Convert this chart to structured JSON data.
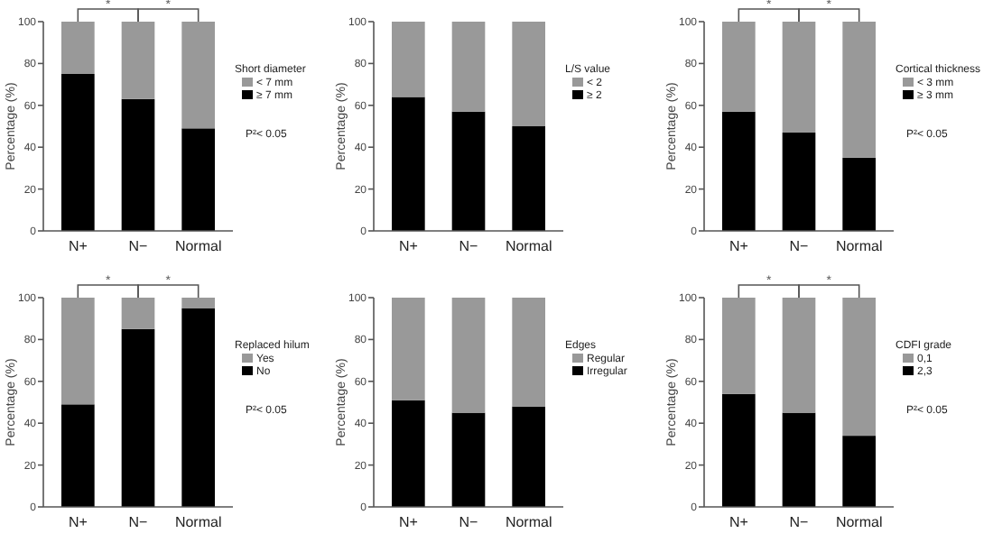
{
  "chart_data": [
    {
      "type": "bar",
      "stacked": true,
      "categories": [
        "N+",
        "N−",
        "Normal"
      ],
      "ylabel": "Percentage (%)",
      "ylim": [
        0,
        100
      ],
      "yticks": [
        0,
        20,
        40,
        60,
        80,
        100
      ],
      "legend": "right",
      "legend_title": "Short diameter",
      "series": [
        {
          "name": "≥ 7 mm",
          "color": "#000000",
          "values": [
            75,
            63,
            49
          ]
        },
        {
          "name": "< 7 mm",
          "color": "#999999",
          "values": [
            25,
            37,
            51
          ]
        }
      ],
      "annotations": [
        "*",
        "*",
        "P²< 0.05"
      ]
    },
    {
      "type": "bar",
      "stacked": true,
      "categories": [
        "N+",
        "N−",
        "Normal"
      ],
      "ylabel": "Percentage (%)",
      "ylim": [
        0,
        100
      ],
      "yticks": [
        0,
        20,
        40,
        60,
        80,
        100
      ],
      "legend": "right",
      "legend_title": "L/S value",
      "series": [
        {
          "name": "≥ 2",
          "color": "#000000",
          "values": [
            64,
            57,
            50
          ]
        },
        {
          "name": "< 2",
          "color": "#999999",
          "values": [
            36,
            43,
            50
          ]
        }
      ]
    },
    {
      "type": "bar",
      "stacked": true,
      "categories": [
        "N+",
        "N−",
        "Normal"
      ],
      "ylabel": "Percentage (%)",
      "ylim": [
        0,
        100
      ],
      "yticks": [
        0,
        20,
        40,
        60,
        80,
        100
      ],
      "legend": "right",
      "legend_title": "Cortical thickness",
      "series": [
        {
          "name": "≥ 3 mm",
          "color": "#000000",
          "values": [
            57,
            47,
            35
          ]
        },
        {
          "name": "< 3 mm",
          "color": "#999999",
          "values": [
            43,
            53,
            65
          ]
        }
      ],
      "annotations": [
        "*",
        "*",
        "P²< 0.05"
      ]
    },
    {
      "type": "bar",
      "stacked": true,
      "categories": [
        "N+",
        "N−",
        "Normal"
      ],
      "ylabel": "Percentage (%)",
      "ylim": [
        0,
        100
      ],
      "yticks": [
        0,
        20,
        40,
        60,
        80,
        100
      ],
      "legend": "right",
      "legend_title": "Replaced hilum",
      "series": [
        {
          "name": "No",
          "color": "#000000",
          "values": [
            49,
            85,
            95
          ]
        },
        {
          "name": "Yes",
          "color": "#999999",
          "values": [
            51,
            15,
            5
          ]
        }
      ],
      "annotations": [
        "*",
        "*",
        "P²< 0.05"
      ]
    },
    {
      "type": "bar",
      "stacked": true,
      "categories": [
        "N+",
        "N−",
        "Normal"
      ],
      "ylabel": "Percentage (%)",
      "ylim": [
        0,
        100
      ],
      "yticks": [
        0,
        20,
        40,
        60,
        80,
        100
      ],
      "legend": "right",
      "legend_title": "Edges",
      "series": [
        {
          "name": "Irregular",
          "color": "#000000",
          "values": [
            51,
            45,
            48
          ]
        },
        {
          "name": "Regular",
          "color": "#999999",
          "values": [
            49,
            55,
            52
          ]
        }
      ]
    },
    {
      "type": "bar",
      "stacked": true,
      "categories": [
        "N+",
        "N−",
        "Normal"
      ],
      "ylabel": "Percentage (%)",
      "ylim": [
        0,
        100
      ],
      "yticks": [
        0,
        20,
        40,
        60,
        80,
        100
      ],
      "legend": "right",
      "legend_title": "CDFI grade",
      "series": [
        {
          "name": "2,3",
          "color": "#000000",
          "values": [
            54,
            45,
            34
          ]
        },
        {
          "name": "0,1",
          "color": "#999999",
          "values": [
            46,
            55,
            66
          ]
        }
      ],
      "annotations": [
        "*",
        "*",
        "P²< 0.05"
      ]
    }
  ]
}
